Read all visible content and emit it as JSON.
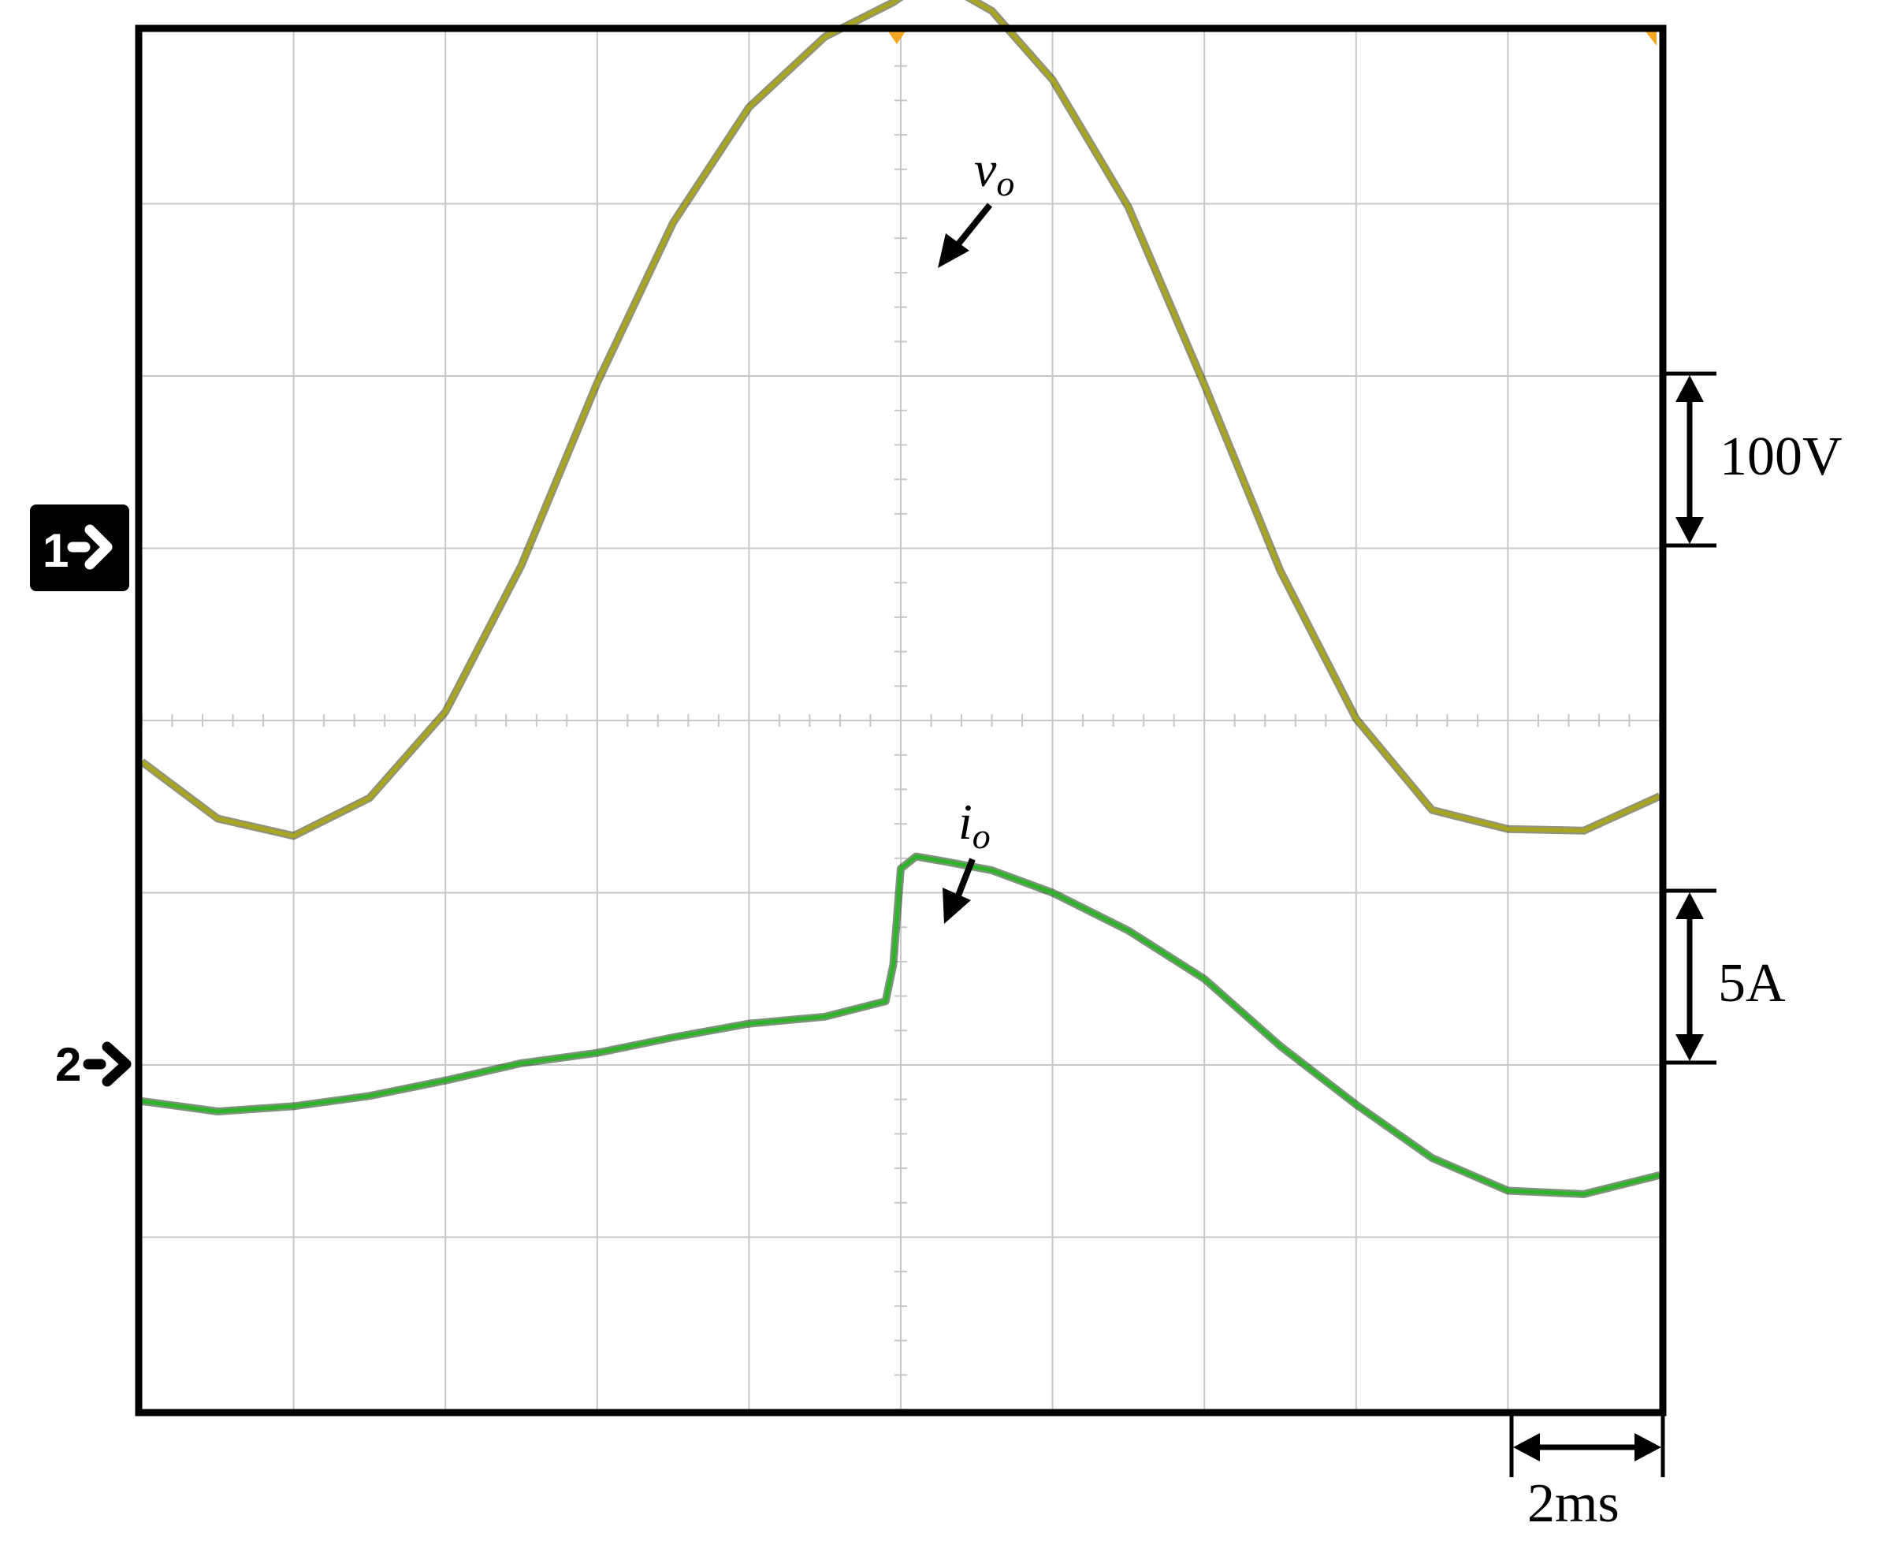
{
  "chart_data": {
    "type": "line",
    "title": "",
    "xlabel": "",
    "ylabel": "",
    "grid": true,
    "divisions": {
      "x": 10,
      "y": 8
    },
    "xlim_div": [
      0,
      10
    ],
    "ylim_div": [
      -4,
      4
    ],
    "trigger_div": 5,
    "colors": {
      "voltage": "#a8a61e",
      "current": "#2fb32a",
      "marker_bg": "#000000",
      "axis": "#000000",
      "grid": "#c8c8c8",
      "trigger": "#f5a623"
    },
    "channel_markers": [
      {
        "label": "1",
        "level_div": 1.0,
        "boxed": true
      },
      {
        "label": "2",
        "level_div": -2.0,
        "boxed": false
      }
    ],
    "series": [
      {
        "name": "v_o",
        "unit": "V",
        "volts_per_div": 100,
        "offset_div": 1.0,
        "x_div": [
          0.0,
          0.5,
          1.0,
          1.5,
          2.0,
          2.5,
          3.0,
          3.5,
          4.0,
          4.5,
          4.95,
          5.0,
          5.05,
          5.1,
          5.3,
          5.6,
          6.0,
          6.5,
          7.0,
          7.5,
          8.0,
          8.5,
          9.0,
          9.5,
          10.0
        ],
        "y_div": [
          -0.24,
          -0.57,
          -0.67,
          -0.45,
          0.05,
          0.9,
          1.96,
          2.89,
          3.56,
          3.97,
          4.17,
          4.2,
          4.25,
          4.28,
          4.27,
          4.12,
          3.72,
          2.98,
          1.95,
          0.87,
          0.01,
          -0.52,
          -0.63,
          -0.64,
          -0.44
        ]
      },
      {
        "name": "i_o",
        "unit": "A",
        "amps_per_div": 5,
        "offset_div": -2.0,
        "x_div": [
          0.0,
          0.5,
          1.0,
          1.5,
          2.0,
          2.5,
          3.0,
          3.5,
          4.0,
          4.5,
          4.9,
          4.95,
          5.0,
          5.1,
          5.3,
          5.6,
          6.0,
          6.5,
          7.0,
          7.5,
          8.0,
          8.5,
          9.0,
          9.5,
          10.0
        ],
        "y_div": [
          -2.21,
          -2.27,
          -2.24,
          -2.18,
          -2.09,
          -1.99,
          -1.93,
          -1.84,
          -1.76,
          -1.72,
          -1.63,
          -1.42,
          -0.86,
          -0.79,
          -0.82,
          -0.87,
          -1.0,
          -1.22,
          -1.5,
          -1.89,
          -2.23,
          -2.54,
          -2.73,
          -2.75,
          -2.64
        ]
      }
    ]
  },
  "annotations": {
    "vo_label": {
      "base": "v",
      "sub": "o"
    },
    "io_label": {
      "base": "i",
      "sub": "o"
    },
    "voltage_scale": "100V",
    "current_scale": "5A",
    "time_scale": "2ms",
    "ch1_marker": "1",
    "ch2_marker": "2"
  }
}
